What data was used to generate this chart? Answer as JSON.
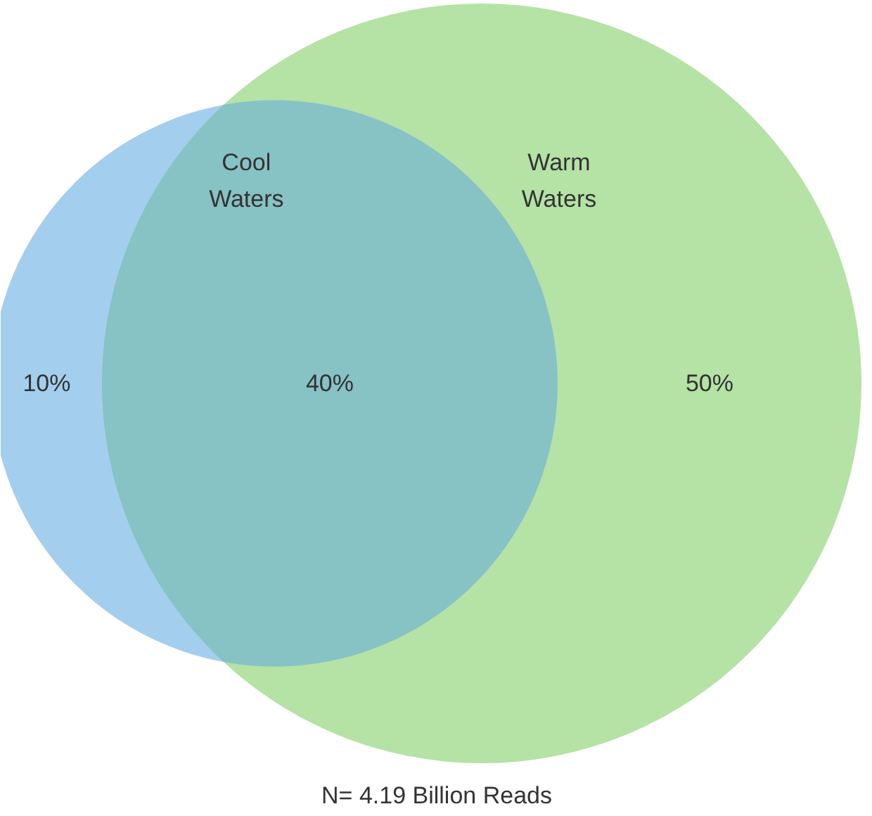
{
  "chart_data": {
    "type": "other",
    "categories": [
      null,
      null,
      null
    ],
    "values": [
      10,
      40,
      50
    ],
    "value_labels": [
      "10%",
      "40%",
      "50%"
    ],
    "colors": [
      "#a4ceee",
      "#87c2c5",
      "#b5e2a5"
    ],
    "annotations": [
      "Cool Waters",
      "Warm Waters",
      "N= 4.19 Billion Reads"
    ]
  }
}
